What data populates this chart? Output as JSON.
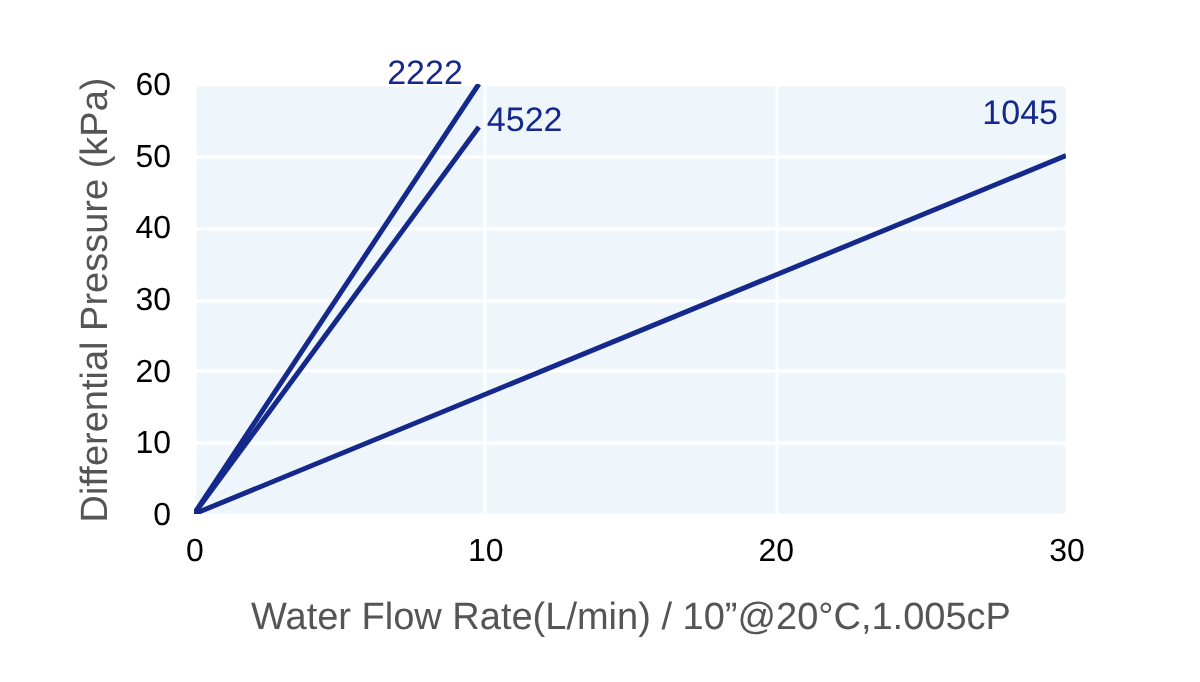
{
  "chart_data": {
    "type": "line",
    "xlabel": "Water Flow Rate(L/min) / 10”@20°C,1.005cP",
    "ylabel": "Differential Pressure (kPa)",
    "xlim": [
      0,
      30
    ],
    "xticks": [
      0,
      10,
      20,
      30
    ],
    "ylim": [
      0,
      60
    ],
    "yticks": [
      0,
      10,
      20,
      30,
      40,
      50,
      60
    ],
    "grid": true,
    "legend": false,
    "marker": "none",
    "line_style": "solid",
    "series": [
      {
        "name": "2222",
        "color": "#15288c",
        "x": [
          0,
          9.8
        ],
        "values": [
          0,
          60
        ]
      },
      {
        "name": "4522",
        "color": "#15288c",
        "x": [
          0,
          9.8
        ],
        "values": [
          0,
          54
        ]
      },
      {
        "name": "1045",
        "color": "#15288c",
        "x": [
          0,
          30
        ],
        "values": [
          0,
          50
        ]
      }
    ]
  }
}
